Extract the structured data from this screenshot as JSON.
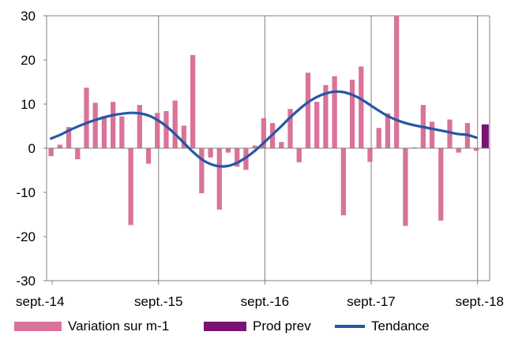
{
  "chart_data": {
    "type": "bar",
    "title": "",
    "xlabel": "",
    "ylabel": "",
    "ylim": [
      -30,
      30
    ],
    "yticks": [
      30,
      20,
      10,
      0,
      -10,
      -20,
      -30
    ],
    "xtick_labels": [
      "sept.-14",
      "sept.-15",
      "sept.-16",
      "sept.-17",
      "sept.-18"
    ],
    "grid": "vertical",
    "legend_position": "bottom",
    "colors": {
      "variation": "#d9739a",
      "prod_prev": "#7b1270",
      "tendance": "#2557a5"
    },
    "series": [
      {
        "name": "Variation sur m-1",
        "type": "bar",
        "values": [
          -1.8,
          0.8,
          4.8,
          -2.5,
          13.7,
          10.3,
          7.3,
          10.5,
          7.2,
          -17.4,
          9.8,
          -3.5,
          8.0,
          8.4,
          10.8,
          5.1,
          21.1,
          -10.2,
          -2.1,
          -13.9,
          -1.0,
          -4.2,
          -4.9,
          0.6,
          6.8,
          5.7,
          1.4,
          8.9,
          -3.2,
          17.1,
          10.5,
          14.3,
          16.3,
          -15.2,
          15.5,
          18.5,
          -3.1,
          4.6,
          7.9,
          30.0,
          -17.6,
          0.2,
          9.8,
          6.0,
          -16.4,
          6.5,
          -1.0,
          5.7,
          -0.6
        ]
      },
      {
        "name": "Prod prev",
        "type": "bar",
        "index": 49,
        "values": [
          5.4
        ]
      },
      {
        "name": "Tendance",
        "type": "line",
        "values": [
          2.2,
          3.0,
          4.0,
          4.9,
          5.7,
          6.4,
          7.0,
          7.5,
          7.8,
          8.0,
          7.9,
          7.4,
          6.4,
          5.0,
          3.2,
          1.2,
          -0.8,
          -2.5,
          -3.6,
          -4.1,
          -4.0,
          -3.3,
          -2.1,
          -0.6,
          1.2,
          3.1,
          5.0,
          7.0,
          8.8,
          10.4,
          11.6,
          12.4,
          12.8,
          12.7,
          12.1,
          11.1,
          9.8,
          8.5,
          7.3,
          6.4,
          5.7,
          5.2,
          4.8,
          4.4,
          4.0,
          3.6,
          3.2,
          3.0,
          2.4
        ]
      }
    ]
  },
  "legend": {
    "items": [
      {
        "label": "Variation sur m-1",
        "kind": "bar",
        "color": "#d9739a"
      },
      {
        "label": "Prod prev",
        "kind": "bar",
        "color": "#7b1270"
      },
      {
        "label": "Tendance",
        "kind": "line",
        "color": "#2557a5"
      }
    ]
  }
}
